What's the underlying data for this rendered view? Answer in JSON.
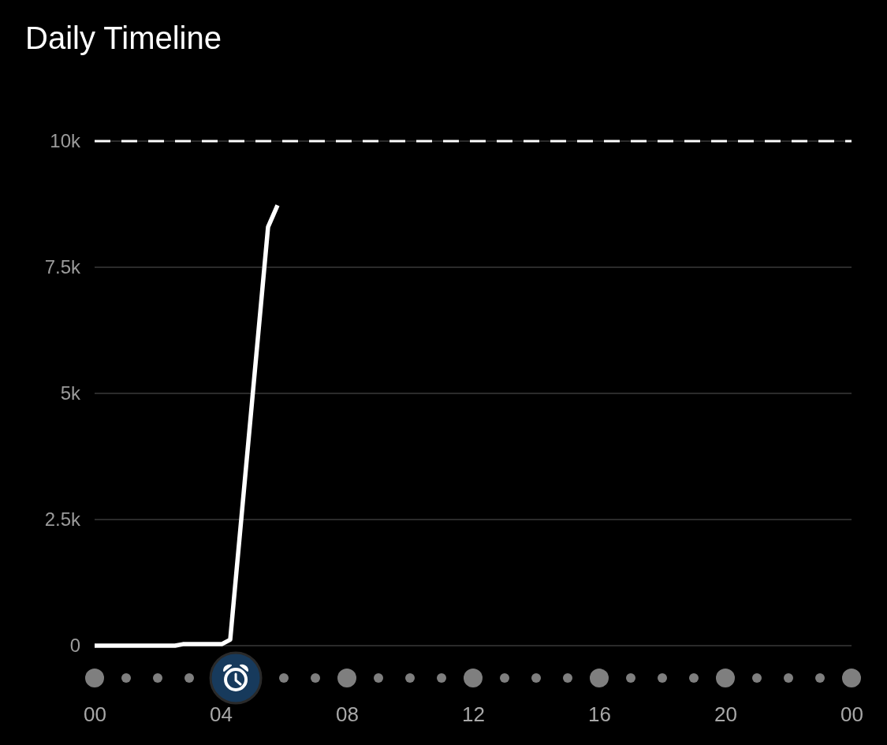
{
  "chart_data": {
    "type": "line",
    "title": "Daily Timeline",
    "x": [
      0,
      2.55,
      2.8,
      4.03,
      4.3,
      5.5,
      5.8
    ],
    "values": [
      0,
      0,
      30,
      30,
      120,
      8300,
      8730
    ],
    "color": "#ffffff",
    "xlim": [
      0,
      24
    ],
    "xticks": [
      {
        "value": 0,
        "label": "00"
      },
      {
        "value": 4,
        "label": "04"
      },
      {
        "value": 8,
        "label": "08"
      },
      {
        "value": 12,
        "label": "12"
      },
      {
        "value": 16,
        "label": "16"
      },
      {
        "value": 20,
        "label": "20"
      },
      {
        "value": 24,
        "label": "00"
      }
    ],
    "ylim": [
      0,
      10000
    ],
    "yticks": [
      0,
      {
        "value": 2500,
        "label": "2.5k"
      },
      {
        "value": 5000,
        "label": "5k"
      },
      {
        "value": 7500,
        "label": "7.5k"
      },
      {
        "value": 10000,
        "label": "10k"
      }
    ],
    "grid": "y",
    "ref_lines": [
      {
        "axis": "y",
        "value": 10000,
        "color": "#ffffff",
        "line_style": "dashed"
      }
    ],
    "marker": "none",
    "line_style": "solid"
  }
}
